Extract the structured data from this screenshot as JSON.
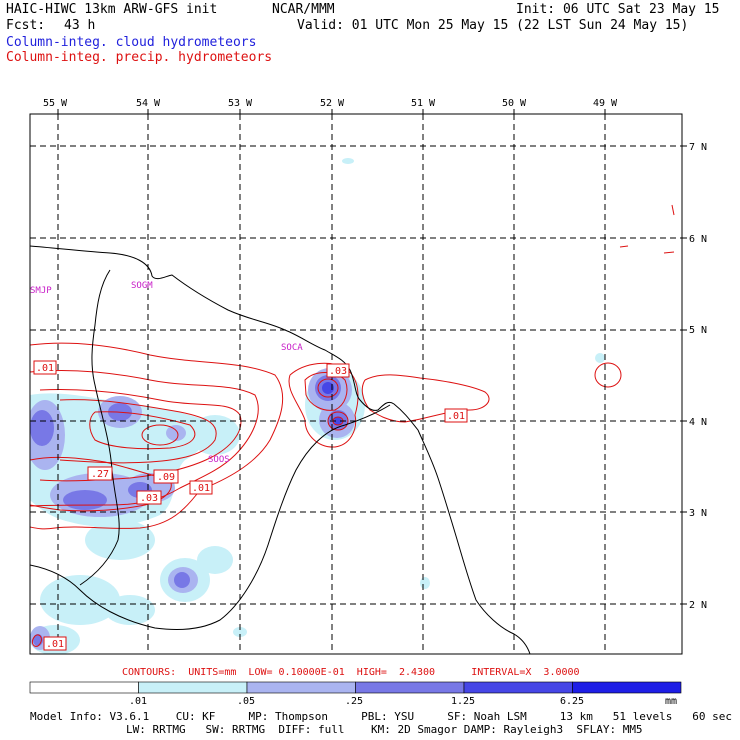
{
  "header": {
    "model_title": "HAIC-HIWC 13km ARW-GFS init",
    "org": "NCAR/MMM",
    "init": "Init: 06 UTC Sat 23 May 15",
    "fcst_label": "Fcst:",
    "fcst_value": "43 h",
    "valid": "Valid: 01 UTC Mon 25 May 15 (22 LST Sun 24 May 15)",
    "field_cloud": "Column-integ. cloud hydrometeors",
    "field_precip": "Column-integ. precip. hydrometeors"
  },
  "map": {
    "lon_labels": [
      "55 W",
      "54 W",
      "53 W",
      "52 W",
      "51 W",
      "50 W",
      "49 W"
    ],
    "lat_labels": [
      "7 N",
      "6 N",
      "5 N",
      "4 N",
      "3 N",
      "2 N"
    ],
    "stations": [
      "SMJP",
      "SOGM",
      "SOCA",
      "SOOS"
    ],
    "contour_labels": [
      ".01",
      ".03",
      ".01",
      ".27",
      ".09",
      ".03",
      ".01",
      ".01"
    ]
  },
  "footer": {
    "contours": "CONTOURS:  UNITS=mm  LOW= 0.10000E-01  HIGH=  2.4300      INTERVAL=X  3.0000",
    "colorbar_ticks": [
      ".01",
      ".05",
      ".25",
      "1.25",
      "6.25"
    ],
    "colorbar_unit": "mm",
    "colorbar_colors": [
      "#ffffff",
      "#c8f0f8",
      "#aab4f0",
      "#7878e6",
      "#4646e6",
      "#1e1ee6"
    ],
    "model_info_1": "Model Info: V3.6.1    CU: KF     MP: Thompson     PBL: YSU     SF: Noah LSM     13 km   51 levels   60 sec",
    "model_info_2": "LW: RRTMG   SW: RRTMG  DIFF: full    KM: 2D Smagor DAMP: Rayleigh3  SFLAY: MM5"
  }
}
